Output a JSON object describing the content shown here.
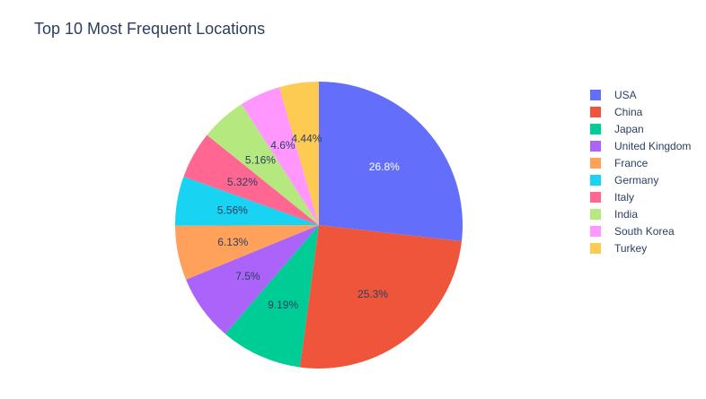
{
  "chart_data": {
    "type": "pie",
    "title": "Top 10 Most Frequent Locations",
    "categories": [
      "USA",
      "China",
      "Japan",
      "United Kingdom",
      "France",
      "Germany",
      "Italy",
      "India",
      "South Korea",
      "Turkey"
    ],
    "values": [
      26.8,
      25.3,
      9.19,
      7.5,
      6.13,
      5.56,
      5.32,
      5.16,
      4.6,
      4.44
    ],
    "data_labels": [
      "26.8%",
      "25.3%",
      "9.19%",
      "7.5%",
      "6.13%",
      "5.56%",
      "5.32%",
      "5.16%",
      "4.6%",
      "4.44%"
    ],
    "colors": [
      "#636efa",
      "#ef553b",
      "#00cc96",
      "#ab63fa",
      "#ffa15a",
      "#19d3f3",
      "#ff6692",
      "#b6e880",
      "#ff97ff",
      "#fecb52"
    ],
    "label_colors": [
      "#ffffff",
      "#2a3f5f",
      "#2a3f5f",
      "#2a3f5f",
      "#2a3f5f",
      "#2a3f5f",
      "#2a3f5f",
      "#2a3f5f",
      "#2a3f5f",
      "#2a3f5f"
    ],
    "legend_position": "right",
    "sort_direction": "clockwise"
  }
}
